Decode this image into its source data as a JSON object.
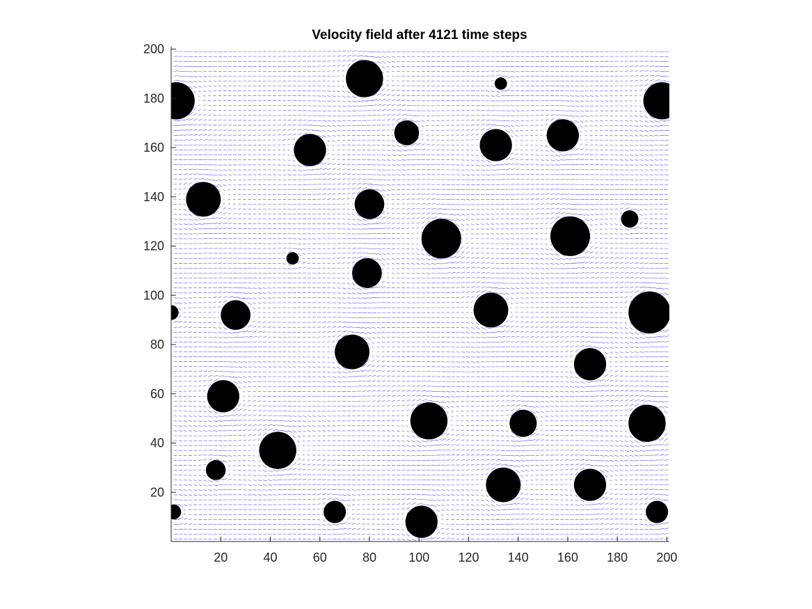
{
  "chart_data": {
    "type": "quiver",
    "title": "Velocity field after 4121 time steps",
    "xlabel": "",
    "ylabel": "",
    "xlim": [
      0,
      201
    ],
    "ylim": [
      0,
      201
    ],
    "xticks": [
      20,
      40,
      60,
      80,
      100,
      120,
      140,
      160,
      180,
      200
    ],
    "yticks": [
      20,
      40,
      60,
      80,
      100,
      120,
      140,
      160,
      180,
      200
    ],
    "grid": false,
    "colors": {
      "vectors": "#0000ff",
      "obstacles": "#000000",
      "axes": "#262626"
    },
    "obstacles": [
      {
        "x": 78,
        "y": 188,
        "r": 7.5
      },
      {
        "x": 133,
        "y": 186,
        "r": 2.5
      },
      {
        "x": 2,
        "y": 179,
        "r": 7.5
      },
      {
        "x": 198,
        "y": 179,
        "r": 7.5
      },
      {
        "x": 95,
        "y": 166,
        "r": 5
      },
      {
        "x": 131,
        "y": 161,
        "r": 6.5
      },
      {
        "x": 158,
        "y": 165,
        "r": 6.5
      },
      {
        "x": 56,
        "y": 159,
        "r": 6.5
      },
      {
        "x": 13,
        "y": 139,
        "r": 7
      },
      {
        "x": 80,
        "y": 137,
        "r": 6
      },
      {
        "x": 185,
        "y": 131,
        "r": 3.5
      },
      {
        "x": 109,
        "y": 123,
        "r": 8
      },
      {
        "x": 161,
        "y": 124,
        "r": 8
      },
      {
        "x": 49,
        "y": 115,
        "r": 2.5
      },
      {
        "x": 79,
        "y": 109,
        "r": 6
      },
      {
        "x": 129,
        "y": 94,
        "r": 7
      },
      {
        "x": 193,
        "y": 93,
        "r": 8.5
      },
      {
        "x": 26,
        "y": 92,
        "r": 6
      },
      {
        "x": 0,
        "y": 93,
        "r": 3
      },
      {
        "x": 73,
        "y": 77,
        "r": 7
      },
      {
        "x": 169,
        "y": 72,
        "r": 6.5
      },
      {
        "x": 21,
        "y": 59,
        "r": 6.5
      },
      {
        "x": 104,
        "y": 49,
        "r": 7.5
      },
      {
        "x": 142,
        "y": 48,
        "r": 5.5
      },
      {
        "x": 192,
        "y": 48,
        "r": 7.5
      },
      {
        "x": 43,
        "y": 37,
        "r": 7.5
      },
      {
        "x": 18,
        "y": 29,
        "r": 4
      },
      {
        "x": 134,
        "y": 23,
        "r": 7
      },
      {
        "x": 169,
        "y": 23,
        "r": 6.5
      },
      {
        "x": 66,
        "y": 12,
        "r": 4.5
      },
      {
        "x": 101,
        "y": 8,
        "r": 6.5
      },
      {
        "x": 1,
        "y": 12,
        "r": 3
      },
      {
        "x": 196,
        "y": 12,
        "r": 4.5
      }
    ]
  }
}
